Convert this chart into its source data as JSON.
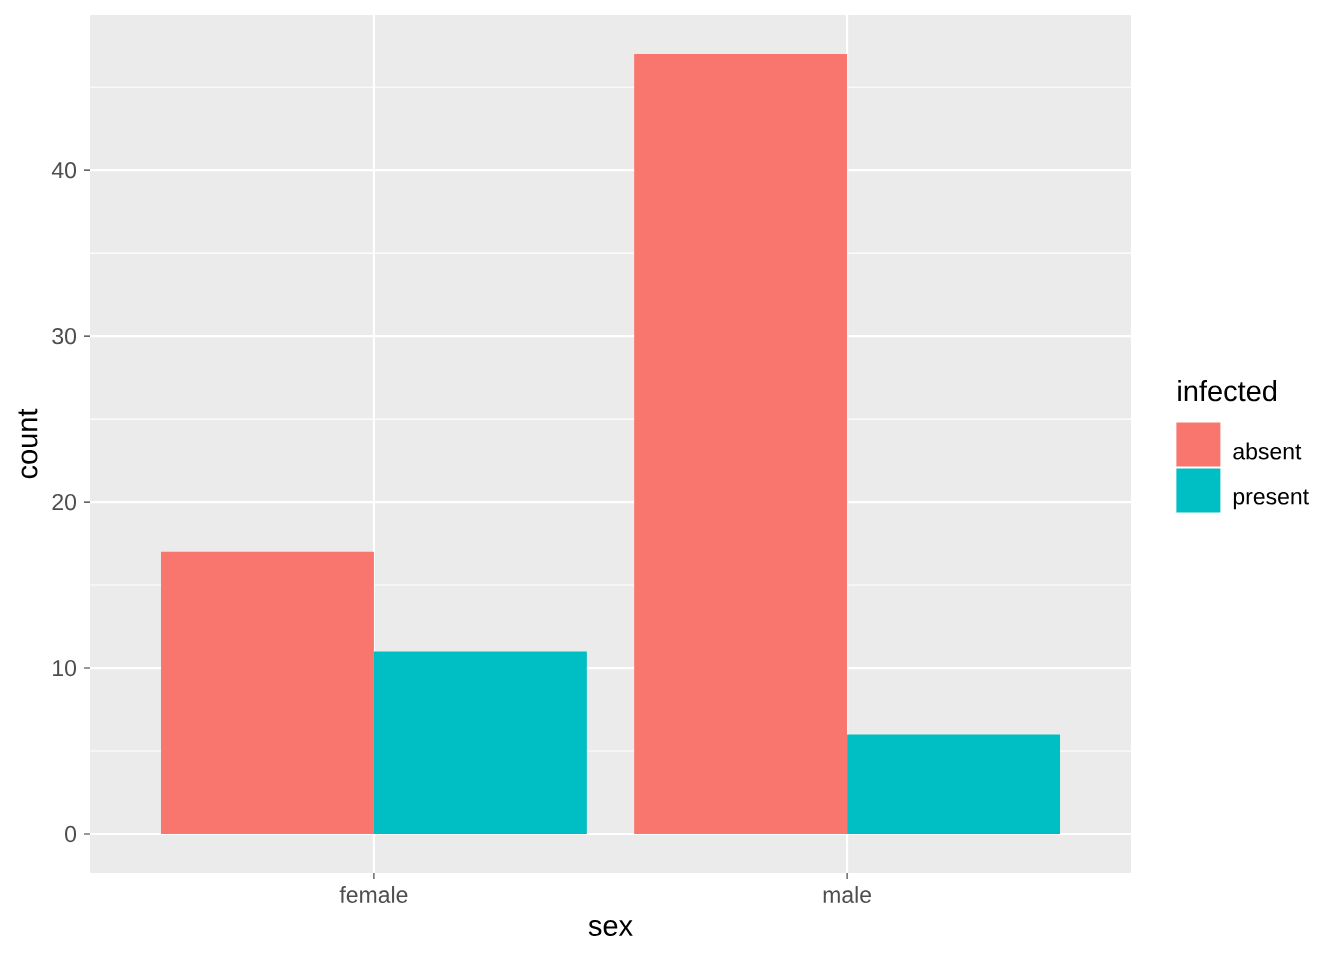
{
  "chart_data": {
    "type": "bar",
    "xlabel": "sex",
    "ylabel": "count",
    "legend_title": "infected",
    "categories": [
      "female",
      "male"
    ],
    "series": [
      {
        "name": "absent",
        "color": "#f8766d",
        "values": [
          17,
          47
        ]
      },
      {
        "name": "present",
        "color": "#00bfc4",
        "values": [
          11,
          6
        ]
      }
    ],
    "ylim": [
      -2.35,
      49.35
    ],
    "yticks": [
      0,
      10,
      20,
      30,
      40
    ],
    "grid": true,
    "legend": "right"
  }
}
